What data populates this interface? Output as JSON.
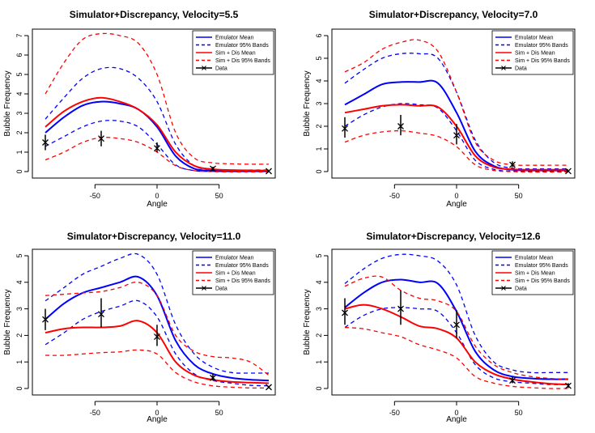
{
  "figure": {
    "colors": {
      "emulator": "#0000ff",
      "sim_dis": "#ff0000",
      "data": "#000000"
    }
  },
  "chart_data": [
    {
      "type": "line",
      "title": "Simulator+Discrepancy, Velocity=5.5",
      "xlabel": "Angle",
      "ylabel": "Bubble Frequency",
      "xlim": [
        -90,
        90
      ],
      "ylim": [
        0,
        7
      ],
      "xticks": [
        -50,
        0,
        50
      ],
      "yticks": [
        0,
        1,
        2,
        3,
        4,
        5,
        6,
        7
      ],
      "legend_position": "top-right",
      "x": [
        -90,
        -75,
        -60,
        -45,
        -30,
        -15,
        0,
        15,
        30,
        45,
        60,
        75,
        90
      ],
      "series": [
        {
          "name": "Emulator Mean",
          "style": "solid",
          "color": "#0000ff",
          "values": [
            2.0,
            2.8,
            3.4,
            3.6,
            3.5,
            3.2,
            2.3,
            0.8,
            0.15,
            0.05,
            0.02,
            0.02,
            0.02
          ]
        },
        {
          "name": "Emulator 95% Bands",
          "style": "dashed",
          "color": "#0000ff",
          "values": [
            2.7,
            3.8,
            4.8,
            5.3,
            5.3,
            4.8,
            3.6,
            1.4,
            0.3,
            0.12,
            0.08,
            0.08,
            0.08
          ]
        },
        {
          "name": "",
          "style": "dashed",
          "color": "#0000ff",
          "values": [
            1.3,
            1.8,
            2.3,
            2.6,
            2.6,
            2.3,
            1.4,
            0.35,
            0.05,
            0.01,
            0.0,
            0.0,
            0.0
          ]
        },
        {
          "name": "Sim + Dis Mean",
          "style": "solid",
          "color": "#ff0000",
          "values": [
            2.3,
            3.1,
            3.6,
            3.8,
            3.6,
            3.2,
            2.4,
            1.0,
            0.3,
            0.12,
            0.08,
            0.06,
            0.06
          ]
        },
        {
          "name": "Sim + Dis 95% Bands",
          "style": "dashed",
          "color": "#ff0000",
          "values": [
            4.0,
            5.6,
            6.8,
            7.1,
            7.0,
            6.6,
            5.0,
            2.0,
            0.7,
            0.45,
            0.4,
            0.38,
            0.38
          ]
        },
        {
          "name": "",
          "style": "dashed",
          "color": "#ff0000",
          "values": [
            0.6,
            1.0,
            1.5,
            1.75,
            1.7,
            1.5,
            1.0,
            0.3,
            0.05,
            0.0,
            -0.02,
            -0.02,
            -0.02
          ]
        }
      ],
      "data_points": [
        {
          "x": -90,
          "y": 1.5,
          "low": 1.1,
          "high": 1.9
        },
        {
          "x": -45,
          "y": 1.7,
          "low": 1.3,
          "high": 2.1
        },
        {
          "x": 0,
          "y": 1.2,
          "low": 1.0,
          "high": 1.5
        },
        {
          "x": 45,
          "y": 0.15,
          "low": 0.05,
          "high": 0.25
        },
        {
          "x": 90,
          "y": 0.02,
          "low": 0.0,
          "high": 0.05
        }
      ]
    },
    {
      "type": "line",
      "title": "Simulator+Discrepancy, Velocity=7.0",
      "xlabel": "Angle",
      "ylabel": "Bubble Frequency",
      "xlim": [
        -90,
        90
      ],
      "ylim": [
        0,
        6
      ],
      "xticks": [
        -50,
        0,
        50
      ],
      "yticks": [
        0,
        1,
        2,
        3,
        4,
        5,
        6
      ],
      "legend_position": "top-right",
      "x": [
        -90,
        -75,
        -60,
        -45,
        -30,
        -15,
        0,
        15,
        30,
        45,
        60,
        75,
        90
      ],
      "series": [
        {
          "name": "Emulator Mean",
          "style": "solid",
          "color": "#0000ff",
          "values": [
            2.95,
            3.4,
            3.85,
            3.95,
            3.95,
            3.9,
            2.6,
            0.9,
            0.25,
            0.08,
            0.05,
            0.05,
            0.05
          ]
        },
        {
          "name": "Emulator 95% Bands",
          "style": "dashed",
          "color": "#0000ff",
          "values": [
            3.9,
            4.5,
            5.0,
            5.2,
            5.2,
            5.0,
            3.5,
            1.4,
            0.4,
            0.15,
            0.12,
            0.12,
            0.12
          ]
        },
        {
          "name": "",
          "style": "dashed",
          "color": "#0000ff",
          "values": [
            2.0,
            2.5,
            2.85,
            3.0,
            2.95,
            2.8,
            1.8,
            0.5,
            0.1,
            0.02,
            0.0,
            0.0,
            0.0
          ]
        },
        {
          "name": "Sim + Dis Mean",
          "style": "solid",
          "color": "#ff0000",
          "values": [
            2.6,
            2.75,
            2.9,
            2.95,
            2.9,
            2.85,
            2.0,
            0.7,
            0.2,
            0.1,
            0.08,
            0.08,
            0.08
          ]
        },
        {
          "name": "Sim + Dis 95% Bands",
          "style": "dashed",
          "color": "#ff0000",
          "values": [
            4.4,
            4.8,
            5.4,
            5.7,
            5.8,
            5.3,
            3.5,
            1.3,
            0.5,
            0.3,
            0.28,
            0.28,
            0.28
          ]
        },
        {
          "name": "",
          "style": "dashed",
          "color": "#ff0000",
          "values": [
            1.3,
            1.6,
            1.75,
            1.8,
            1.7,
            1.55,
            1.1,
            0.3,
            0.05,
            0.0,
            -0.02,
            -0.02,
            -0.02
          ]
        }
      ],
      "data_points": [
        {
          "x": -90,
          "y": 1.9,
          "low": 1.5,
          "high": 2.4
        },
        {
          "x": -45,
          "y": 2.0,
          "low": 1.6,
          "high": 2.5
        },
        {
          "x": 0,
          "y": 1.6,
          "low": 1.2,
          "high": 2.1
        },
        {
          "x": 45,
          "y": 0.3,
          "low": 0.2,
          "high": 0.45
        },
        {
          "x": 90,
          "y": 0.02,
          "low": 0.0,
          "high": 0.05
        }
      ]
    },
    {
      "type": "line",
      "title": "Simulator+Discrepancy, Velocity=11.0",
      "xlabel": "Angle",
      "ylabel": "Bubble Frequency",
      "xlim": [
        -90,
        90
      ],
      "ylim": [
        0,
        5
      ],
      "xticks": [
        -50,
        0,
        50
      ],
      "yticks": [
        0,
        1,
        2,
        3,
        4,
        5
      ],
      "legend_position": "top-right",
      "x": [
        -90,
        -75,
        -60,
        -45,
        -30,
        -15,
        0,
        15,
        30,
        45,
        60,
        75,
        90
      ],
      "series": [
        {
          "name": "Emulator Mean",
          "style": "solid",
          "color": "#0000ff",
          "values": [
            2.6,
            3.2,
            3.6,
            3.8,
            4.0,
            4.2,
            3.5,
            1.8,
            0.9,
            0.55,
            0.4,
            0.33,
            0.3
          ]
        },
        {
          "name": "Emulator 95% Bands",
          "style": "dashed",
          "color": "#0000ff",
          "values": [
            3.3,
            3.8,
            4.3,
            4.6,
            4.9,
            5.05,
            4.3,
            2.4,
            1.3,
            0.8,
            0.6,
            0.58,
            0.58
          ]
        },
        {
          "name": "",
          "style": "dashed",
          "color": "#0000ff",
          "values": [
            1.65,
            2.1,
            2.6,
            2.9,
            3.1,
            3.3,
            2.7,
            1.3,
            0.55,
            0.3,
            0.2,
            0.12,
            0.1
          ]
        },
        {
          "name": "Sim + Dis Mean",
          "style": "solid",
          "color": "#ff0000",
          "values": [
            2.1,
            2.25,
            2.3,
            2.3,
            2.35,
            2.55,
            2.1,
            1.0,
            0.5,
            0.33,
            0.25,
            0.22,
            0.2
          ]
        },
        {
          "name": "Sim + Dis 95% Bands",
          "style": "dashed",
          "color": "#ff0000",
          "values": [
            3.5,
            3.55,
            3.6,
            3.65,
            3.8,
            4.0,
            3.5,
            2.0,
            1.4,
            1.2,
            1.15,
            1.0,
            0.5
          ]
        },
        {
          "name": "",
          "style": "dashed",
          "color": "#ff0000",
          "values": [
            1.25,
            1.25,
            1.3,
            1.35,
            1.38,
            1.45,
            1.3,
            0.6,
            0.25,
            0.1,
            0.05,
            0.02,
            0.02
          ]
        }
      ],
      "data_points": [
        {
          "x": -90,
          "y": 2.6,
          "low": 2.2,
          "high": 3.0
        },
        {
          "x": -45,
          "y": 2.8,
          "low": 2.3,
          "high": 3.4
        },
        {
          "x": 0,
          "y": 1.95,
          "low": 1.6,
          "high": 2.4
        },
        {
          "x": 45,
          "y": 0.4,
          "low": 0.3,
          "high": 0.55
        },
        {
          "x": 90,
          "y": 0.05,
          "low": 0.0,
          "high": 0.1
        }
      ]
    },
    {
      "type": "line",
      "title": "Simulator+Discrepancy, Velocity=12.6",
      "xlabel": "Angle",
      "ylabel": "Bubble Frequency",
      "xlim": [
        -90,
        90
      ],
      "ylim": [
        0,
        5
      ],
      "xticks": [
        -50,
        0,
        50
      ],
      "yticks": [
        0,
        1,
        2,
        3,
        4,
        5
      ],
      "legend_position": "top-right",
      "x": [
        -90,
        -75,
        -60,
        -45,
        -30,
        -15,
        0,
        15,
        30,
        45,
        60,
        75,
        90
      ],
      "series": [
        {
          "name": "Emulator Mean",
          "style": "solid",
          "color": "#0000ff",
          "values": [
            3.05,
            3.6,
            4.0,
            4.1,
            4.0,
            3.95,
            2.9,
            1.4,
            0.7,
            0.45,
            0.38,
            0.35,
            0.35
          ]
        },
        {
          "name": "Emulator 95% Bands",
          "style": "dashed",
          "color": "#0000ff",
          "values": [
            3.95,
            4.5,
            4.9,
            5.05,
            5.0,
            4.8,
            3.9,
            2.0,
            1.0,
            0.7,
            0.6,
            0.6,
            0.6
          ]
        },
        {
          "name": "",
          "style": "dashed",
          "color": "#0000ff",
          "values": [
            2.3,
            2.75,
            3.0,
            3.05,
            3.0,
            2.9,
            2.1,
            0.9,
            0.4,
            0.25,
            0.2,
            0.15,
            0.15
          ]
        },
        {
          "name": "Sim + Dis Mean",
          "style": "solid",
          "color": "#ff0000",
          "values": [
            3.0,
            3.15,
            3.0,
            2.7,
            2.35,
            2.25,
            1.9,
            1.0,
            0.55,
            0.35,
            0.25,
            0.18,
            0.15
          ]
        },
        {
          "name": "Sim + Dis 95% Bands",
          "style": "dashed",
          "color": "#ff0000",
          "values": [
            3.85,
            4.15,
            4.2,
            3.7,
            3.4,
            3.3,
            2.9,
            1.6,
            0.9,
            0.6,
            0.45,
            0.38,
            0.35
          ]
        },
        {
          "name": "",
          "style": "dashed",
          "color": "#ff0000",
          "values": [
            2.3,
            2.25,
            2.1,
            1.95,
            1.65,
            1.45,
            1.15,
            0.45,
            0.2,
            0.08,
            0.03,
            0.0,
            0.0
          ]
        }
      ],
      "data_points": [
        {
          "x": -90,
          "y": 2.85,
          "low": 2.4,
          "high": 3.4
        },
        {
          "x": -45,
          "y": 3.0,
          "low": 2.4,
          "high": 3.7
        },
        {
          "x": 0,
          "y": 2.4,
          "low": 1.9,
          "high": 2.95
        },
        {
          "x": 45,
          "y": 0.3,
          "low": 0.2,
          "high": 0.45
        },
        {
          "x": 90,
          "y": 0.1,
          "low": 0.02,
          "high": 0.2
        }
      ]
    }
  ],
  "legend": {
    "entries": [
      "Emulator Mean",
      "Emulator 95% Bands",
      "Sim + Dis Mean",
      "Sim + Dis 95% Bands",
      "Data"
    ]
  }
}
